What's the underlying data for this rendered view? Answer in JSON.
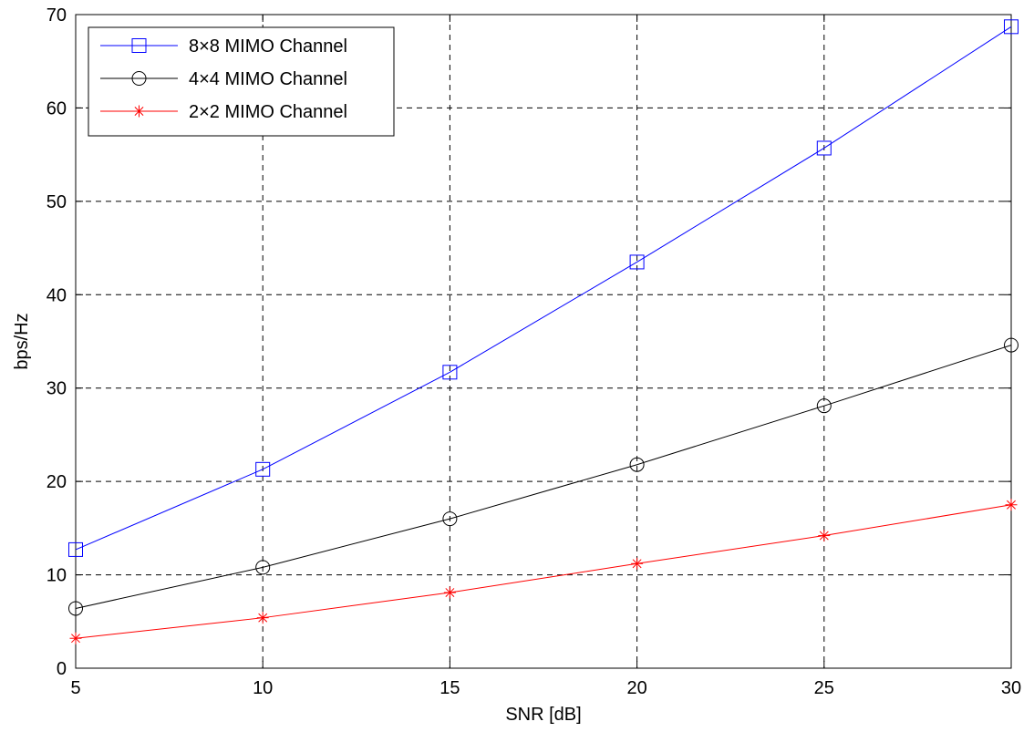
{
  "chart_data": {
    "type": "line",
    "title": "",
    "xlabel": "SNR [dB]",
    "ylabel": "bps/Hz",
    "xlim": [
      5,
      30
    ],
    "ylim": [
      0,
      70
    ],
    "xticks": [
      5,
      10,
      15,
      20,
      25,
      30
    ],
    "yticks": [
      0,
      10,
      20,
      30,
      40,
      50,
      60,
      70
    ],
    "grid": true,
    "legend_position": "top-left",
    "x": [
      5,
      10,
      15,
      20,
      25,
      30
    ],
    "series": [
      {
        "name": "8×8 MIMO Channel",
        "color": "#0000ff",
        "marker": "square",
        "values": [
          12.7,
          21.3,
          31.7,
          43.5,
          55.7,
          68.7
        ]
      },
      {
        "name": "4×4 MIMO Channel",
        "color": "#000000",
        "marker": "circle",
        "values": [
          6.4,
          10.8,
          16.0,
          21.8,
          28.1,
          34.6
        ]
      },
      {
        "name": "2×2 MIMO Channel",
        "color": "#ff0000",
        "marker": "asterisk",
        "values": [
          3.2,
          5.4,
          8.1,
          11.2,
          14.2,
          17.5
        ]
      }
    ]
  }
}
